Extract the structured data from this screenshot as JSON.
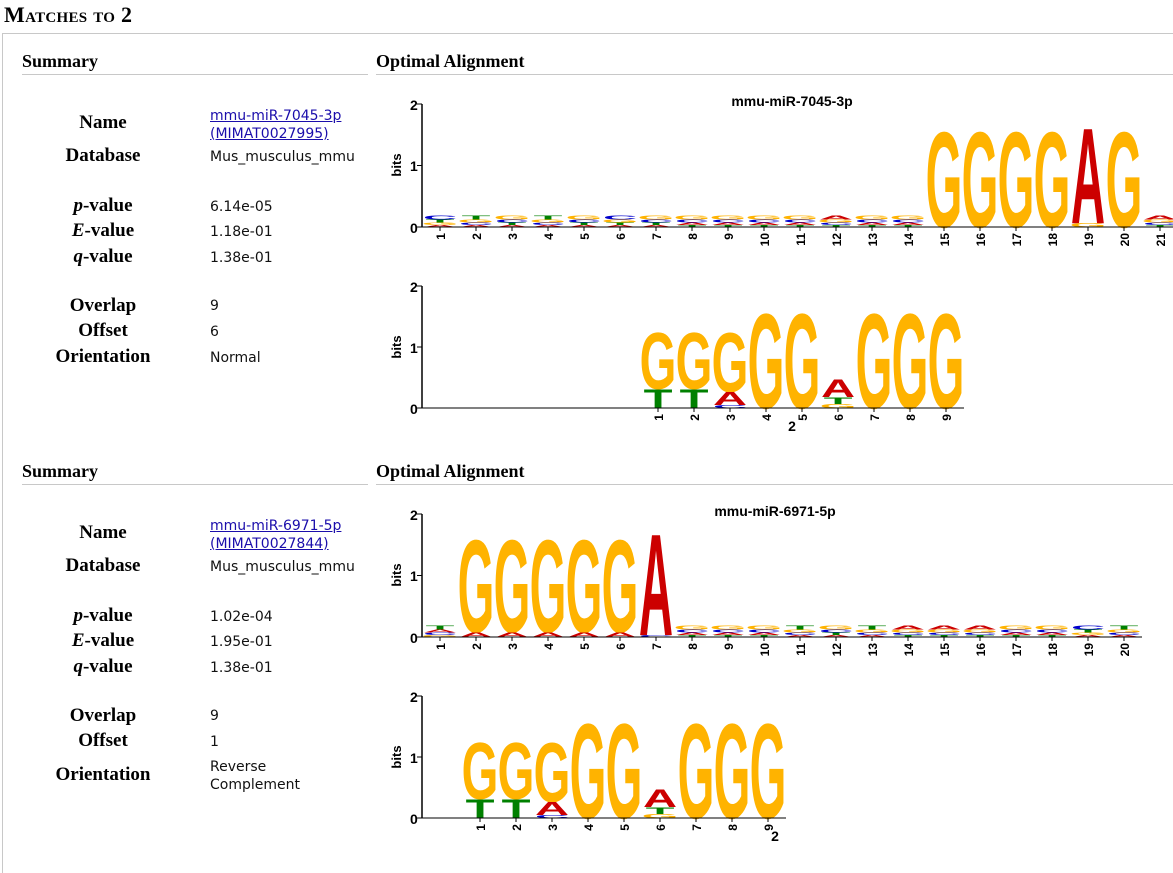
{
  "page": {
    "heading": "Matches to 2"
  },
  "labels": {
    "summary": "Summary",
    "optimal_alignment": "Optimal Alignment",
    "name": "Name",
    "database": "Database",
    "p_value_letter": "p",
    "e_value_letter": "E",
    "q_value_letter": "q",
    "value_suffix": "-value",
    "overlap": "Overlap",
    "offset": "Offset",
    "orientation": "Orientation",
    "axis_bits": "bits",
    "query_name": "2"
  },
  "matches": [
    {
      "name_link": "mmu-miR-7045-3p",
      "accession": "(MIMAT0027995)",
      "database": "Mus_musculus_mmu",
      "p_value": "6.14e-05",
      "e_value": "1.18e-01",
      "q_value": "1.38e-01",
      "overlap": "9",
      "offset": "6",
      "orientation_line1": "Normal",
      "orientation_line2": "",
      "target_title": "mmu-miR-7045-3p"
    },
    {
      "name_link": "mmu-miR-6971-5p",
      "accession": "(MIMAT0027844)",
      "database": "Mus_musculus_mmu",
      "p_value": "1.02e-04",
      "e_value": "1.95e-01",
      "q_value": "1.38e-01",
      "overlap": "9",
      "offset": "1",
      "orientation_line1": "Reverse",
      "orientation_line2": "Complement",
      "target_title": "mmu-miR-6971-5p"
    }
  ],
  "colors": {
    "A": "#cc0000",
    "C": "#0000cc",
    "G": "#ffb300",
    "T": "#008000"
  }
}
